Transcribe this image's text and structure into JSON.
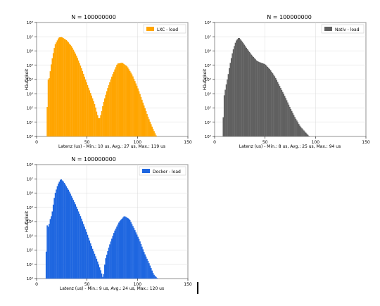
{
  "chart_data": [
    {
      "type": "bar",
      "title": "N = 100000000",
      "xlabel": "Latenz (us) - Min.: 10 us, Avg.: 27 us, Max.: 119 us",
      "ylabel": "Häufigkeit",
      "legend": "LXC - load",
      "legend_position": "top-right",
      "color": "#ffa500",
      "yscale": "log",
      "xlim": [
        0,
        150
      ],
      "ylim": [
        1,
        100000000
      ],
      "grid": true,
      "xticks": [
        "0",
        "50",
        "100",
        "150"
      ],
      "yticks": [
        "10⁰",
        "10¹",
        "10²",
        "10³",
        "10⁴",
        "10⁵",
        "10⁶",
        "10⁷",
        "10⁸"
      ],
      "shape": [
        [
          10,
          1
        ],
        [
          11,
          14000
        ],
        [
          12,
          7000
        ],
        [
          13,
          22000
        ],
        [
          15,
          200000
        ],
        [
          18,
          2500000
        ],
        [
          22,
          9000000
        ],
        [
          25,
          9500000
        ],
        [
          30,
          5500000
        ],
        [
          35,
          2000000
        ],
        [
          40,
          400000
        ],
        [
          45,
          50000
        ],
        [
          50,
          5000
        ],
        [
          55,
          600
        ],
        [
          58,
          150
        ],
        [
          60,
          40
        ],
        [
          62,
          15
        ],
        [
          64,
          40
        ],
        [
          66,
          200
        ],
        [
          70,
          2000
        ],
        [
          75,
          20000
        ],
        [
          80,
          130000
        ],
        [
          85,
          150000
        ],
        [
          90,
          80000
        ],
        [
          95,
          20000
        ],
        [
          100,
          3000
        ],
        [
          105,
          300
        ],
        [
          110,
          30
        ],
        [
          115,
          4
        ],
        [
          119,
          1
        ]
      ]
    },
    {
      "type": "bar",
      "title": "N = 100000000",
      "xlabel": "Latenz (us) - Min.: 8 us, Avg.: 25 us, Max.: 94 us",
      "ylabel": "Häufigkeit",
      "legend": "Nativ - load",
      "legend_position": "top-right",
      "color": "#606060",
      "yscale": "log",
      "xlim": [
        0,
        150
      ],
      "ylim": [
        1,
        100000000
      ],
      "grid": true,
      "xticks": [
        "0",
        "50",
        "100",
        "150"
      ],
      "yticks": [
        "10⁰",
        "10¹",
        "10²",
        "10³",
        "10⁴",
        "10⁵",
        "10⁶",
        "10⁷",
        "10⁸"
      ],
      "shape": [
        [
          8,
          1
        ],
        [
          9,
          500
        ],
        [
          11,
          3000
        ],
        [
          13,
          15000
        ],
        [
          15,
          100000
        ],
        [
          18,
          1000000
        ],
        [
          21,
          5000000
        ],
        [
          24,
          9000000
        ],
        [
          28,
          4000000
        ],
        [
          32,
          1500000
        ],
        [
          37,
          500000
        ],
        [
          42,
          200000
        ],
        [
          46,
          150000
        ],
        [
          50,
          120000
        ],
        [
          55,
          50000
        ],
        [
          60,
          15000
        ],
        [
          65,
          3000
        ],
        [
          70,
          600
        ],
        [
          75,
          100
        ],
        [
          80,
          20
        ],
        [
          85,
          5
        ],
        [
          90,
          2
        ],
        [
          94,
          1
        ]
      ]
    },
    {
      "type": "bar",
      "title": "N = 100000000",
      "xlabel": "Latenz (us) - Min.: 9 us, Avg.: 24 us, Max.: 120 us",
      "ylabel": "Häufigkeit",
      "legend": "Docker - load",
      "legend_position": "top-right",
      "color": "#1e66e0",
      "yscale": "log",
      "xlim": [
        0,
        150
      ],
      "ylim": [
        1,
        100000000
      ],
      "grid": true,
      "xticks": [
        "0",
        "50",
        "100",
        "150"
      ],
      "yticks": [
        "10⁰",
        "10¹",
        "10²",
        "10³",
        "10⁴",
        "10⁵",
        "10⁶",
        "10⁷",
        "10⁸"
      ],
      "shape": [
        [
          9,
          1
        ],
        [
          10,
          6000
        ],
        [
          12,
          4000
        ],
        [
          13,
          12000
        ],
        [
          15,
          30000
        ],
        [
          18,
          800000
        ],
        [
          21,
          4000000
        ],
        [
          24,
          10000000
        ],
        [
          27,
          6000000
        ],
        [
          32,
          1500000
        ],
        [
          38,
          200000
        ],
        [
          44,
          20000
        ],
        [
          50,
          1500
        ],
        [
          55,
          150
        ],
        [
          60,
          20
        ],
        [
          64,
          3
        ],
        [
          66,
          1
        ],
        [
          68,
          20
        ],
        [
          72,
          200
        ],
        [
          77,
          2000
        ],
        [
          82,
          10000
        ],
        [
          87,
          25000
        ],
        [
          92,
          15000
        ],
        [
          97,
          3000
        ],
        [
          102,
          500
        ],
        [
          107,
          60
        ],
        [
          112,
          10
        ],
        [
          116,
          2
        ],
        [
          120,
          1
        ]
      ]
    }
  ]
}
